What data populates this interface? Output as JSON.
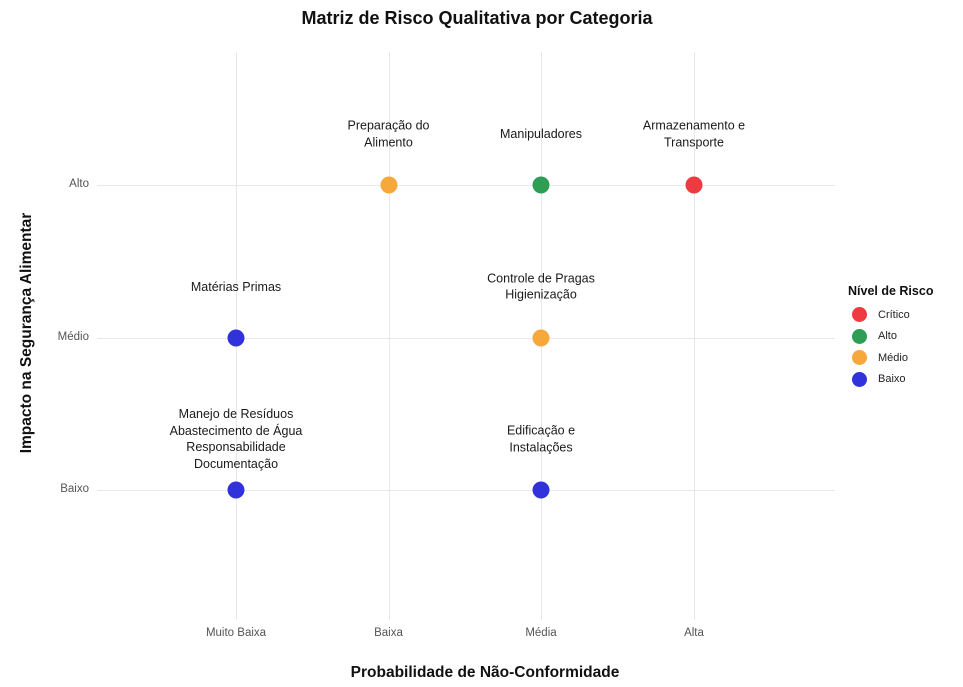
{
  "chart_data": {
    "type": "scatter",
    "title": "Matriz de Risco Qualitativa por Categoria",
    "xlabel": "Probabilidade de Não-Conformidade",
    "ylabel": "Impacto na Segurança Alimentar",
    "x_categories": [
      "Muito Baixa",
      "Baixa",
      "Média",
      "Alta"
    ],
    "y_categories": [
      "Baixo",
      "Médio",
      "Alto"
    ],
    "grid": true,
    "legend_position": "right",
    "legend_title": "Nível de Risco",
    "legend": [
      {
        "label": "Crítico",
        "color": "#ee3a41"
      },
      {
        "label": "Alto",
        "color": "#2e9e54"
      },
      {
        "label": "Médio",
        "color": "#f6a83b"
      },
      {
        "label": "Baixo",
        "color": "#3232dd"
      }
    ],
    "points": [
      {
        "label_lines": [
          "Preparação do",
          "Alimento"
        ],
        "x": "Baixa",
        "y": "Alto",
        "risk": "Médio"
      },
      {
        "label_lines": [
          "Manipuladores"
        ],
        "x": "Média",
        "y": "Alto",
        "risk": "Alto"
      },
      {
        "label_lines": [
          "Armazenamento e",
          "Transporte"
        ],
        "x": "Alta",
        "y": "Alto",
        "risk": "Crítico"
      },
      {
        "label_lines": [
          "Matérias Primas"
        ],
        "x": "Muito Baixa",
        "y": "Médio",
        "risk": "Baixo"
      },
      {
        "label_lines": [
          "Controle de Pragas",
          "Higienização"
        ],
        "x": "Média",
        "y": "Médio",
        "risk": "Médio"
      },
      {
        "label_lines": [
          "Manejo de Resíduos",
          "Abastecimento de Água",
          "Responsabilidade",
          "Documentação"
        ],
        "x": "Muito Baixa",
        "y": "Baixo",
        "risk": "Baixo"
      },
      {
        "label_lines": [
          "Edificação e",
          "Instalações"
        ],
        "x": "Média",
        "y": "Baixo",
        "risk": "Baixo"
      }
    ],
    "colors": {
      "background": "#ffffff",
      "gridline": "#e8e8e8",
      "tick_label": "#555555",
      "text": "#111111"
    }
  }
}
